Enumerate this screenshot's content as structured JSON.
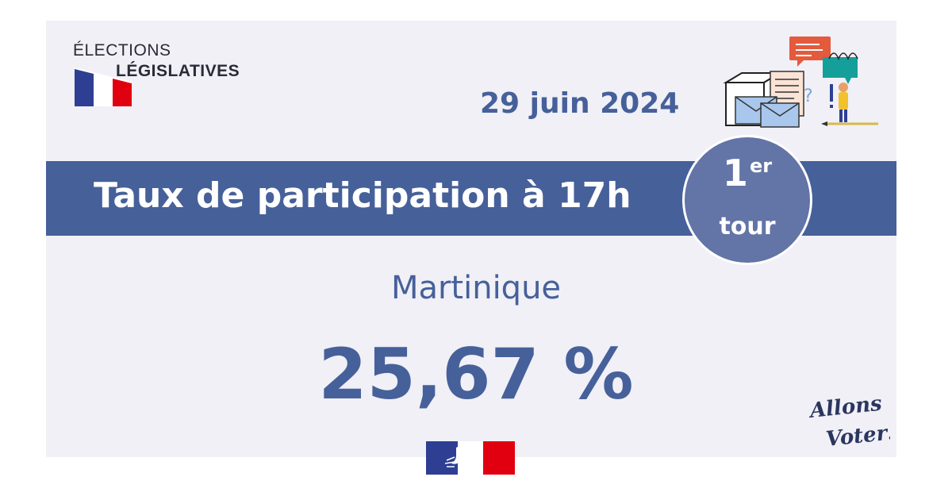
{
  "header": {
    "logo_line1": "ÉLECTIONS",
    "logo_line2": "LÉGISLATIVES",
    "date": "29 juin 2024"
  },
  "band": {
    "title": "Taux de participation à 17h"
  },
  "round_badge": {
    "number": "1",
    "suffix": "er",
    "word": "tour"
  },
  "result": {
    "region": "Martinique",
    "value": "25,67 %"
  },
  "slogan": {
    "line1": "Allons",
    "line2": "Voter!"
  },
  "colors": {
    "accent": "#46609a",
    "badge": "#6374a6",
    "background": "#f0f0f6",
    "flag_blue": "#2e3f93",
    "flag_red": "#e1000f"
  },
  "icons": [
    "french-flag-icon",
    "ballot-box-illustration",
    "marianne-logo-icon"
  ]
}
